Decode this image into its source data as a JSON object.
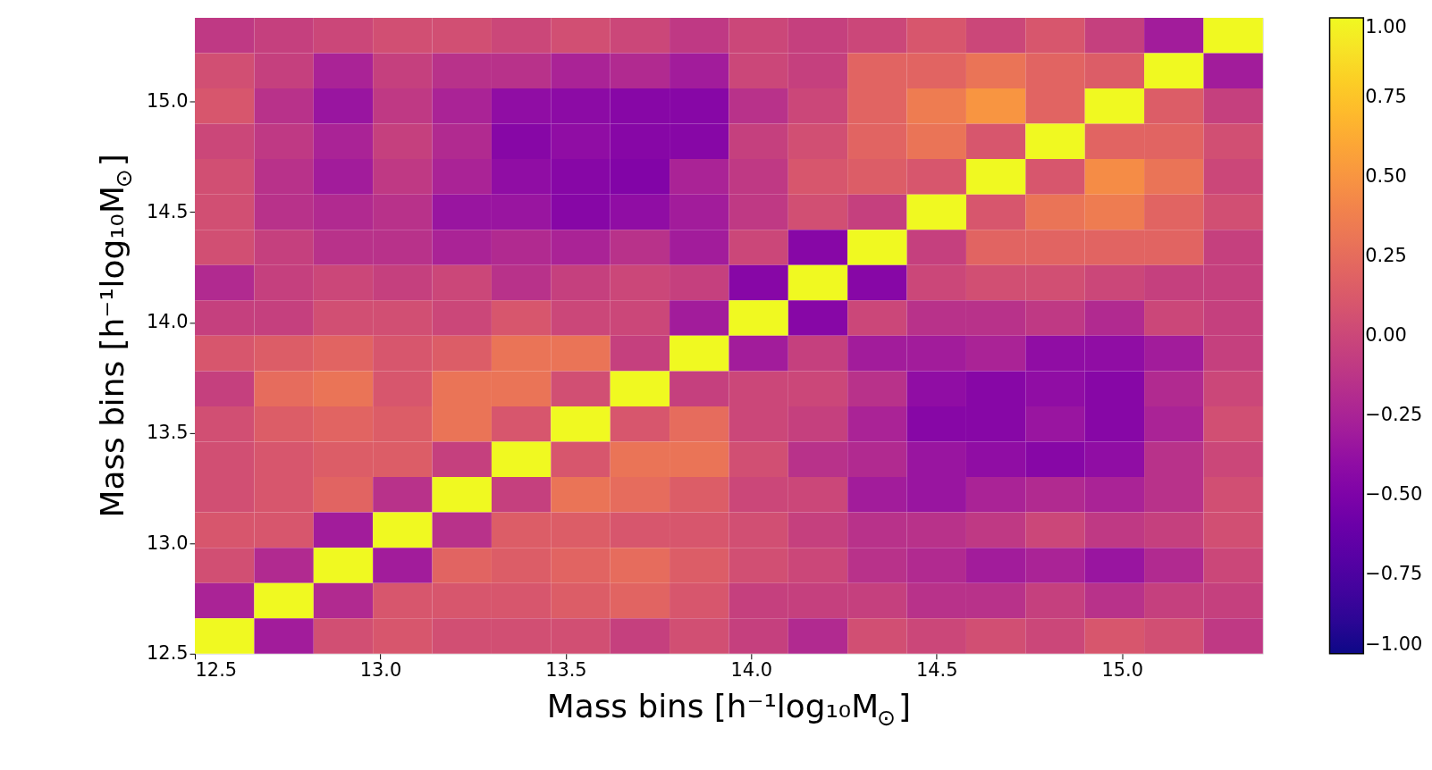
{
  "chart_data": {
    "type": "heatmap",
    "xlabel": "Mass bins [h⁻¹log₁₀M$_{⊙}$]",
    "ylabel": "Mass bins [h⁻¹log₁₀M$_{⊙}$]",
    "x": [
      12.58,
      12.74,
      12.9,
      13.06,
      13.22,
      13.38,
      13.54,
      13.7,
      13.86,
      14.02,
      14.18,
      14.34,
      14.5,
      14.66,
      14.82,
      14.98,
      15.14,
      15.3
    ],
    "y": [
      15.3,
      15.14,
      14.98,
      14.82,
      14.66,
      14.5,
      14.34,
      14.18,
      14.02,
      13.86,
      13.7,
      13.54,
      13.38,
      13.22,
      13.06,
      12.9,
      12.74,
      12.58
    ],
    "xlim": [
      12.5,
      15.38
    ],
    "ylim": [
      12.5,
      15.38
    ],
    "xticks": [
      {
        "value": 12.5,
        "label": "12.5"
      },
      {
        "value": 13,
        "label": "13.0"
      },
      {
        "value": 13.5,
        "label": "13.5"
      },
      {
        "value": 14,
        "label": "14.0"
      },
      {
        "value": 14.5,
        "label": "14.5"
      },
      {
        "value": 15,
        "label": "15.0"
      }
    ],
    "yticks": [
      {
        "value": 12.5,
        "label": "12.5"
      },
      {
        "value": 13,
        "label": "13.0"
      },
      {
        "value": 13.5,
        "label": "13.5"
      },
      {
        "value": 14,
        "label": "14.0"
      },
      {
        "value": 14.5,
        "label": "14.5"
      },
      {
        "value": 15,
        "label": "15.0"
      }
    ],
    "clim": [
      -1,
      1
    ],
    "cticks": [
      {
        "value": -1,
        "label": "−1.00"
      },
      {
        "value": -0.75,
        "label": "−0.75"
      },
      {
        "value": -0.5,
        "label": "−0.50"
      },
      {
        "value": -0.25,
        "label": "−0.25"
      },
      {
        "value": 0,
        "label": "0.00"
      },
      {
        "value": 0.25,
        "label": "0.25"
      },
      {
        "value": 0.5,
        "label": "0.50"
      },
      {
        "value": 0.75,
        "label": "0.75"
      },
      {
        "value": 1,
        "label": "1.00"
      }
    ],
    "grid": false,
    "cells": [
      [
        -0.1,
        -0.05,
        0.0,
        0.05,
        0.05,
        0.0,
        0.05,
        0.0,
        -0.1,
        0.0,
        -0.05,
        0.0,
        0.1,
        0.0,
        0.1,
        -0.05,
        -0.3,
        1
      ],
      [
        0.05,
        -0.05,
        -0.25,
        -0.05,
        -0.15,
        -0.15,
        -0.25,
        -0.2,
        -0.3,
        0.0,
        -0.05,
        0.2,
        0.2,
        0.3,
        0.2,
        0.15,
        1,
        -0.3
      ],
      [
        0.1,
        -0.15,
        -0.35,
        -0.1,
        -0.25,
        -0.4,
        -0.42,
        -0.45,
        -0.45,
        -0.15,
        0.0,
        0.2,
        0.35,
        0.5,
        0.2,
        1,
        0.15,
        -0.05
      ],
      [
        0.0,
        -0.1,
        -0.25,
        -0.05,
        -0.2,
        -0.45,
        -0.4,
        -0.45,
        -0.45,
        -0.05,
        0.05,
        0.2,
        0.3,
        0.1,
        1,
        0.2,
        0.2,
        0.05
      ],
      [
        0.05,
        -0.15,
        -0.3,
        -0.1,
        -0.25,
        -0.4,
        -0.45,
        -0.48,
        -0.25,
        -0.1,
        0.1,
        0.15,
        0.1,
        1,
        0.1,
        0.45,
        0.3,
        0.0
      ],
      [
        0.05,
        -0.15,
        -0.2,
        -0.15,
        -0.35,
        -0.35,
        -0.45,
        -0.4,
        -0.3,
        -0.1,
        0.05,
        -0.05,
        1,
        0.1,
        0.3,
        0.35,
        0.2,
        0.05
      ],
      [
        0.05,
        -0.05,
        -0.15,
        -0.15,
        -0.25,
        -0.2,
        -0.25,
        -0.15,
        -0.3,
        0.0,
        -0.45,
        1,
        -0.05,
        0.2,
        0.2,
        0.2,
        0.2,
        -0.05
      ],
      [
        -0.2,
        -0.05,
        0.0,
        -0.05,
        0.0,
        -0.15,
        -0.05,
        0.0,
        -0.05,
        -0.45,
        1,
        -0.45,
        0.0,
        0.05,
        0.05,
        0.0,
        -0.05,
        -0.05
      ],
      [
        -0.05,
        -0.05,
        0.05,
        0.05,
        0.0,
        0.1,
        0.0,
        0.0,
        -0.3,
        1,
        -0.45,
        0.0,
        -0.15,
        -0.15,
        -0.1,
        -0.2,
        0.0,
        -0.05
      ],
      [
        0.1,
        0.15,
        0.2,
        0.1,
        0.15,
        0.3,
        0.3,
        -0.05,
        1,
        -0.3,
        -0.05,
        -0.3,
        -0.3,
        -0.25,
        -0.4,
        -0.4,
        -0.3,
        -0.05
      ],
      [
        -0.05,
        0.25,
        0.3,
        0.1,
        0.3,
        0.3,
        0.05,
        1,
        -0.05,
        0.0,
        0.0,
        -0.15,
        -0.4,
        -0.45,
        -0.4,
        -0.45,
        -0.2,
        0.0
      ],
      [
        0.05,
        0.15,
        0.2,
        0.15,
        0.3,
        0.1,
        1,
        0.1,
        0.25,
        0.0,
        -0.05,
        -0.25,
        -0.45,
        -0.45,
        -0.35,
        -0.45,
        -0.25,
        0.05
      ],
      [
        0.05,
        0.1,
        0.15,
        0.15,
        -0.05,
        1,
        0.1,
        0.3,
        0.3,
        0.05,
        -0.15,
        -0.2,
        -0.35,
        -0.4,
        -0.45,
        -0.4,
        -0.15,
        0.0
      ],
      [
        0.05,
        0.1,
        0.2,
        -0.15,
        1,
        -0.05,
        0.3,
        0.25,
        0.15,
        0.0,
        0.0,
        -0.3,
        -0.35,
        -0.25,
        -0.2,
        -0.25,
        -0.15,
        0.05
      ],
      [
        0.1,
        0.1,
        -0.3,
        1,
        -0.15,
        0.15,
        0.15,
        0.1,
        0.1,
        0.05,
        -0.05,
        -0.15,
        -0.15,
        -0.1,
        0.0,
        -0.1,
        -0.05,
        0.05
      ],
      [
        0.05,
        -0.2,
        1,
        -0.3,
        0.2,
        0.15,
        0.2,
        0.25,
        0.15,
        0.05,
        0.0,
        -0.15,
        -0.2,
        -0.3,
        -0.25,
        -0.35,
        -0.2,
        0.0
      ],
      [
        -0.25,
        1,
        -0.2,
        0.1,
        0.1,
        0.1,
        0.15,
        0.2,
        0.1,
        -0.05,
        -0.05,
        -0.05,
        -0.15,
        -0.15,
        -0.05,
        -0.15,
        -0.05,
        -0.05
      ],
      [
        1,
        -0.3,
        0.05,
        0.1,
        0.05,
        0.05,
        0.05,
        -0.05,
        0.05,
        -0.05,
        -0.2,
        0.05,
        0.0,
        0.05,
        0.0,
        0.1,
        0.05,
        -0.1
      ]
    ]
  }
}
